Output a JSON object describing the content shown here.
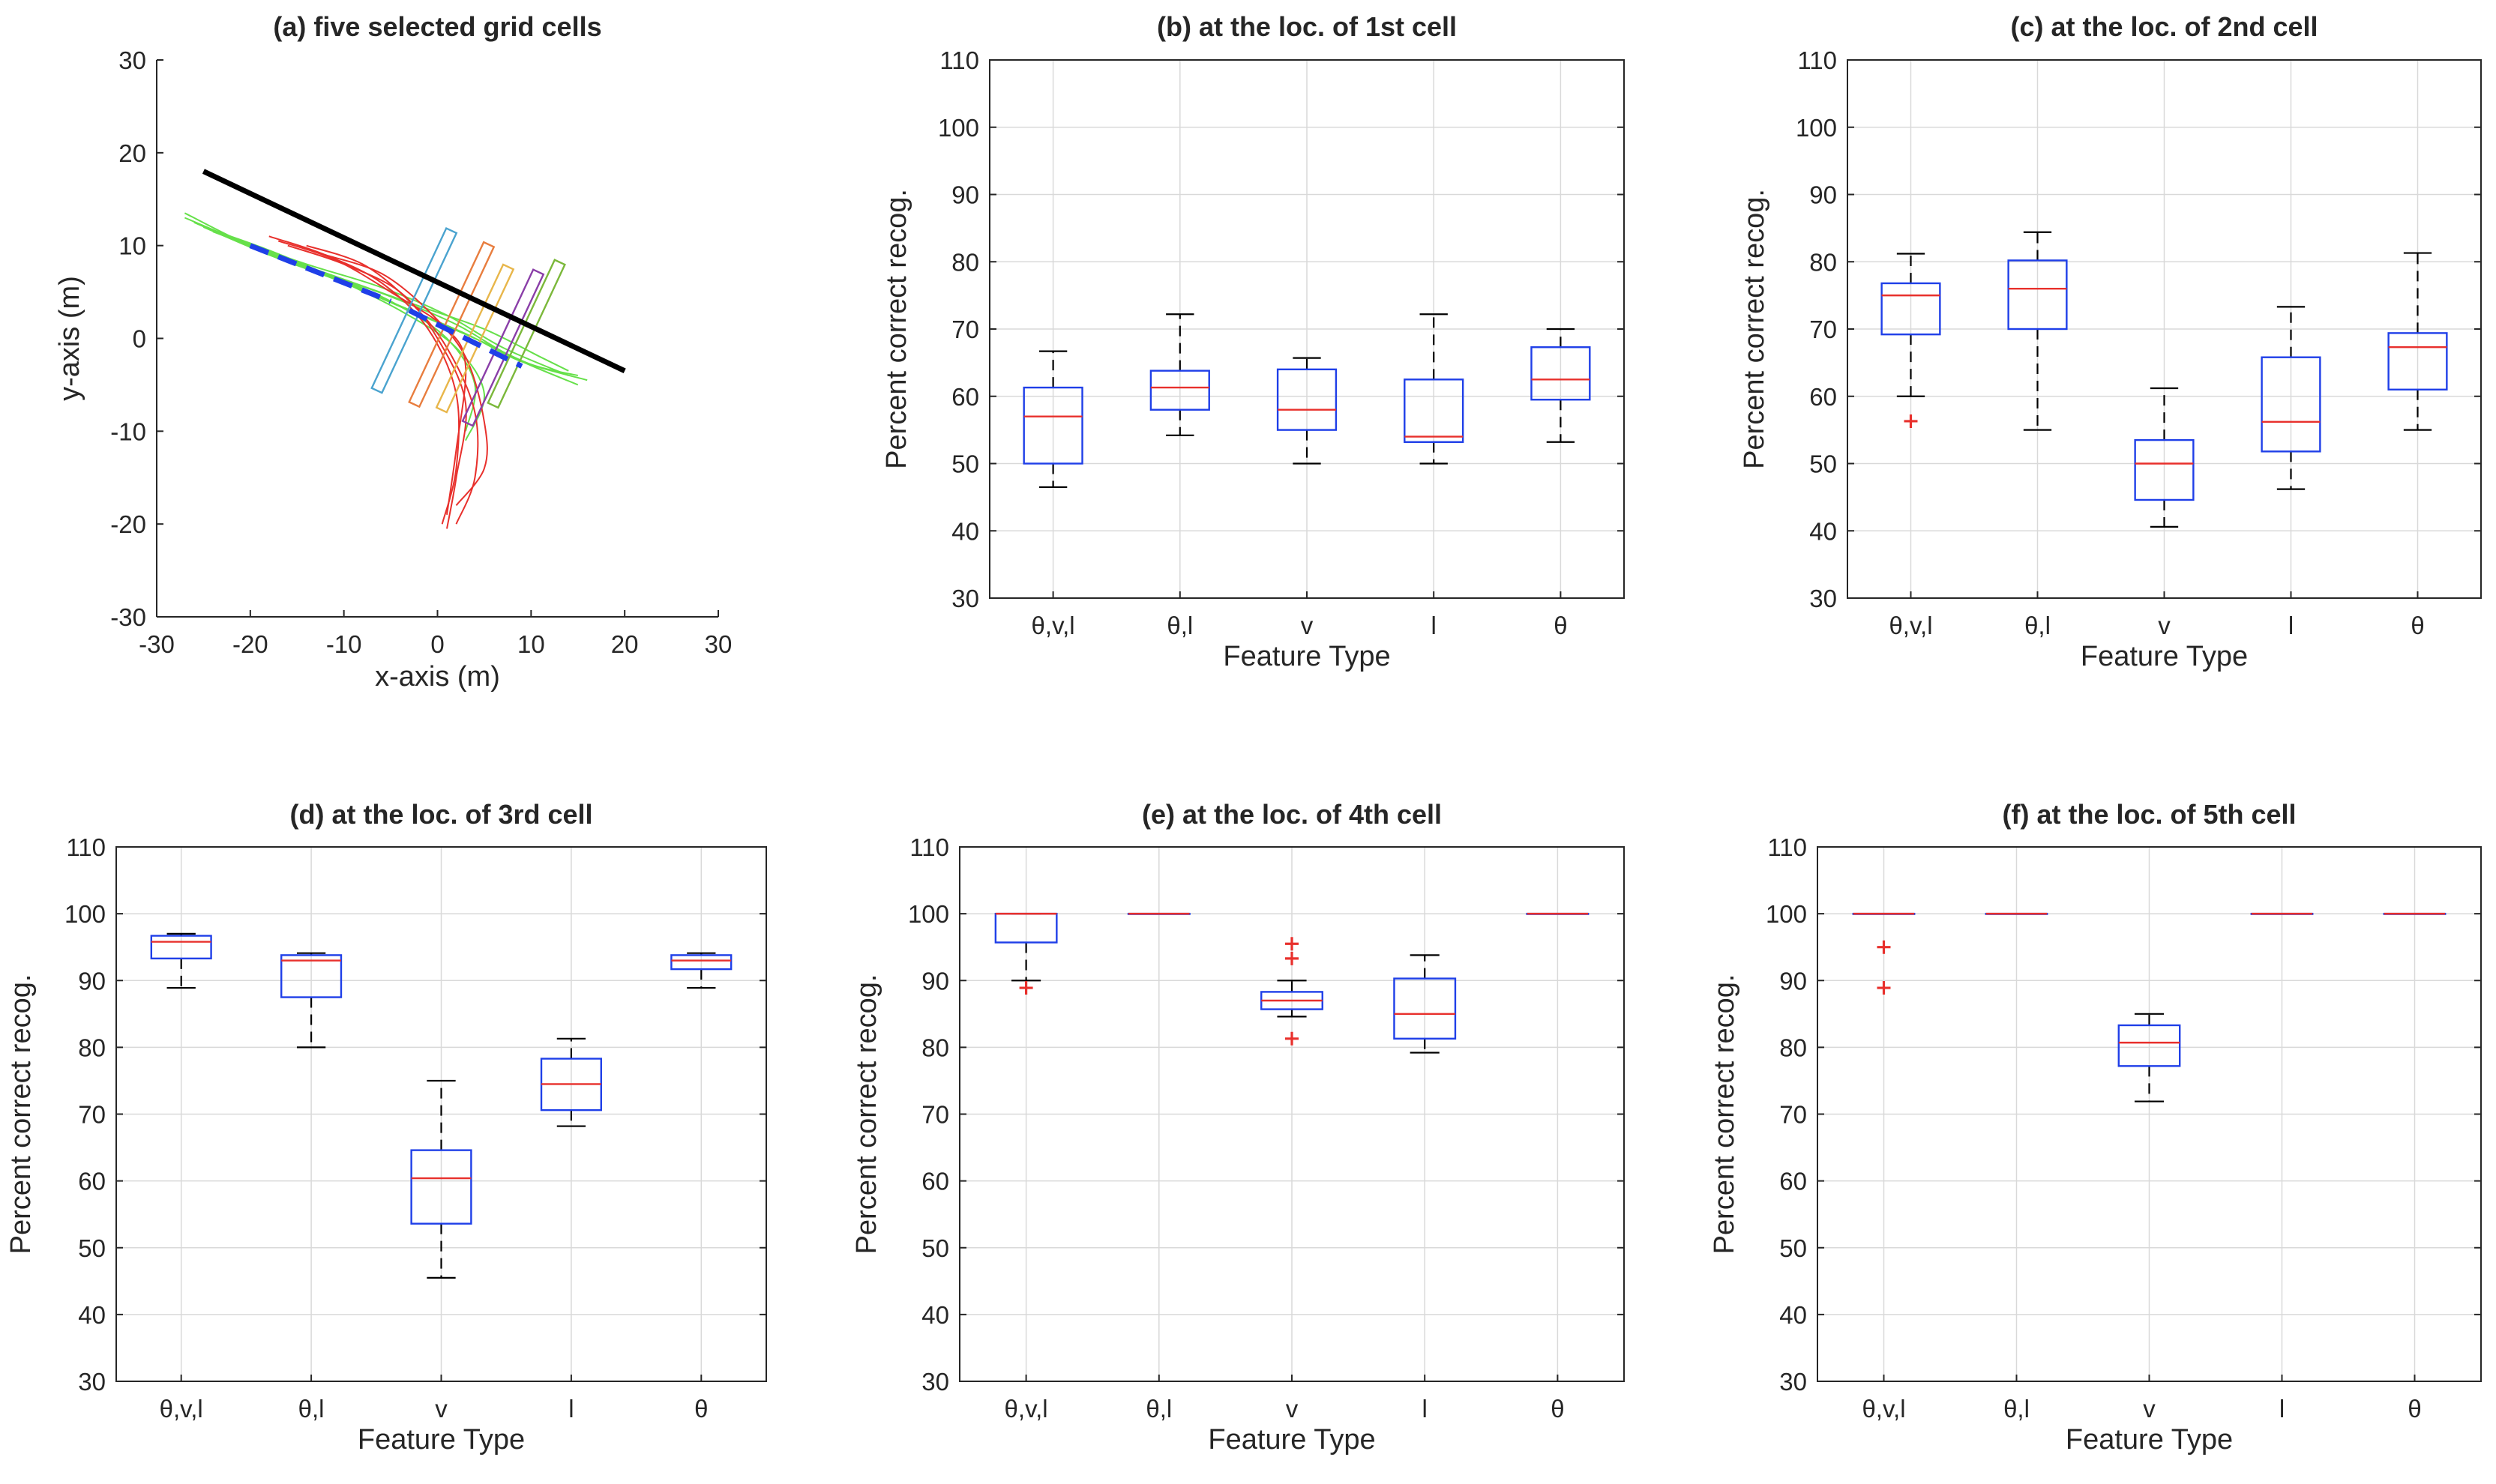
{
  "figure": {
    "background": "#ffffff"
  },
  "colors": {
    "box": "#1f3fe8",
    "median": "#e8302c",
    "whisker": "#000000",
    "outlier": "#e8302c",
    "grid": "#d9d9d9",
    "axis": "#262626",
    "road_line": "#000000",
    "dashed_line": "#1f3fe8",
    "green_tracks": "#66e04a",
    "red_tracks": "#e8302c",
    "cell_colors": [
      "#4aa3cf",
      "#e87d3e",
      "#e8b64a",
      "#8a3ea8",
      "#7bb83a"
    ]
  },
  "chart_data": [
    {
      "id": "a",
      "type": "line",
      "title": "(a) five selected grid cells",
      "xlabel": "x-axis (m)",
      "ylabel": "y-axis (m)",
      "xlim": [
        -30,
        30
      ],
      "ylim": [
        -30,
        30
      ],
      "xticks": [
        -30,
        -20,
        -10,
        0,
        10,
        20,
        30
      ],
      "yticks": [
        -30,
        -20,
        -10,
        0,
        10,
        20,
        30
      ],
      "grid": false,
      "road_line": {
        "x": [
          -25,
          20
        ],
        "y": [
          18,
          -3.5
        ]
      },
      "dashed_line": {
        "x": [
          -20,
          -5
        ],
        "y": [
          10,
          4
        ]
      },
      "dashed_line_2": {
        "x": [
          -3,
          9
        ],
        "y": [
          3,
          -3
        ]
      },
      "cells": [
        {
          "center": [
            -2.5,
            3
          ],
          "width": 1.2,
          "height": 19,
          "angle_deg": 25
        },
        {
          "center": [
            1.5,
            1.5
          ],
          "width": 1.2,
          "height": 19,
          "angle_deg": 25
        },
        {
          "center": [
            4,
            0
          ],
          "width": 1.2,
          "height": 17,
          "angle_deg": 25
        },
        {
          "center": [
            7,
            -1
          ],
          "width": 1.2,
          "height": 18,
          "angle_deg": 25
        },
        {
          "center": [
            9.5,
            0.5
          ],
          "width": 1.2,
          "height": 17,
          "angle_deg": 25
        }
      ],
      "green_tracks": [
        {
          "x": [
            -27,
            -20,
            -12,
            -5,
            2,
            8,
            15
          ],
          "y": [
            13.5,
            10,
            7,
            4.5,
            1.5,
            -2,
            -5
          ]
        },
        {
          "x": [
            -27,
            -21,
            -14,
            -6,
            1,
            7,
            14
          ],
          "y": [
            13,
            10.5,
            8,
            5.5,
            2.5,
            -1,
            -4
          ]
        },
        {
          "x": [
            -26,
            -19,
            -11,
            -4,
            3,
            9,
            16
          ],
          "y": [
            12.5,
            9.5,
            6.5,
            3.5,
            0.5,
            -2.5,
            -4.5
          ]
        },
        {
          "x": [
            -25,
            -18,
            -10,
            -3,
            4,
            10,
            15
          ],
          "y": [
            12,
            9,
            6,
            3,
            0,
            -2.8,
            -4
          ]
        },
        {
          "x": [
            -24,
            -16,
            -9,
            -2,
            5,
            11,
            14
          ],
          "y": [
            11.5,
            8.5,
            6,
            3.5,
            1,
            -2,
            -3.5
          ]
        },
        {
          "x": [
            -26,
            -19,
            -12,
            -5,
            1,
            4,
            3
          ],
          "y": [
            12.5,
            9.5,
            7,
            4,
            0,
            -5,
            -10
          ]
        },
        {
          "x": [
            -25,
            -18,
            -11,
            -4,
            2,
            5,
            3
          ],
          "y": [
            12,
            9.5,
            6.5,
            3,
            -1,
            -6,
            -11
          ]
        }
      ],
      "red_tracks": [
        {
          "x": [
            -18,
            -12,
            -6,
            -1,
            2,
            2,
            0.5
          ],
          "y": [
            11,
            9,
            6,
            1,
            -6,
            -14,
            -20
          ]
        },
        {
          "x": [
            -16,
            -10,
            -4,
            0,
            3,
            2,
            1
          ],
          "y": [
            10,
            8,
            5,
            0,
            -7,
            -15,
            -20.5
          ]
        },
        {
          "x": [
            -14,
            -8,
            -3,
            1,
            4,
            4,
            2
          ],
          "y": [
            10,
            8,
            4,
            -1,
            -8,
            -15,
            -20
          ]
        },
        {
          "x": [
            -12,
            -6,
            -1,
            3,
            5,
            5,
            2
          ],
          "y": [
            9,
            7,
            3,
            -2,
            -9,
            -14,
            -18
          ]
        },
        {
          "x": [
            -17,
            -11,
            -5,
            1,
            3,
            2,
            1
          ],
          "y": [
            10.5,
            8.5,
            5,
            1,
            -3,
            -12,
            -19
          ]
        }
      ]
    },
    {
      "id": "b",
      "type": "box",
      "title": "(b) at the loc. of 1st cell",
      "xlabel": "Feature Type",
      "ylabel": "Percent correct recog.",
      "categories": [
        "θ,v,l",
        "θ,l",
        "v",
        "l",
        "θ"
      ],
      "ylim": [
        30,
        110
      ],
      "yticks": [
        30,
        40,
        50,
        60,
        70,
        80,
        90,
        100,
        110
      ],
      "grid": true,
      "boxes": [
        {
          "q1": 50,
          "median": 57,
          "q3": 61.3,
          "lower": 46.5,
          "upper": 66.7,
          "outliers": []
        },
        {
          "q1": 58,
          "median": 61.3,
          "q3": 63.8,
          "lower": 54.2,
          "upper": 72.2,
          "outliers": []
        },
        {
          "q1": 55,
          "median": 58,
          "q3": 64,
          "lower": 50,
          "upper": 65.7,
          "outliers": []
        },
        {
          "q1": 53.2,
          "median": 54,
          "q3": 62.5,
          "lower": 50,
          "upper": 72.2,
          "outliers": []
        },
        {
          "q1": 59.5,
          "median": 62.5,
          "q3": 67.3,
          "lower": 53.2,
          "upper": 70,
          "outliers": []
        }
      ]
    },
    {
      "id": "c",
      "type": "box",
      "title": "(c) at the loc. of 2nd cell",
      "xlabel": "Feature Type",
      "ylabel": "Percent correct recog.",
      "categories": [
        "θ,v,l",
        "θ,l",
        "v",
        "l",
        "θ"
      ],
      "ylim": [
        30,
        110
      ],
      "yticks": [
        30,
        40,
        50,
        60,
        70,
        80,
        90,
        100,
        110
      ],
      "grid": true,
      "boxes": [
        {
          "q1": 69.2,
          "median": 75,
          "q3": 76.8,
          "lower": 60,
          "upper": 81.2,
          "outliers": [
            56.3
          ]
        },
        {
          "q1": 70,
          "median": 76,
          "q3": 80.2,
          "lower": 55,
          "upper": 84.4,
          "outliers": []
        },
        {
          "q1": 44.6,
          "median": 50,
          "q3": 53.5,
          "lower": 40.6,
          "upper": 61.2,
          "outliers": []
        },
        {
          "q1": 51.8,
          "median": 56.2,
          "q3": 65.8,
          "lower": 46.2,
          "upper": 73.3,
          "outliers": []
        },
        {
          "q1": 61,
          "median": 67.3,
          "q3": 69.4,
          "lower": 55,
          "upper": 81.3,
          "outliers": []
        }
      ]
    },
    {
      "id": "d",
      "type": "box",
      "title": "(d) at the loc. of 3rd cell",
      "xlabel": "Feature Type",
      "ylabel": "Percent correct recog.",
      "categories": [
        "θ,v,l",
        "θ,l",
        "v",
        "l",
        "θ"
      ],
      "ylim": [
        30,
        110
      ],
      "yticks": [
        30,
        40,
        50,
        60,
        70,
        80,
        90,
        100,
        110
      ],
      "grid": true,
      "boxes": [
        {
          "q1": 93.3,
          "median": 95.8,
          "q3": 96.7,
          "lower": 88.9,
          "upper": 97,
          "outliers": []
        },
        {
          "q1": 87.5,
          "median": 93,
          "q3": 93.8,
          "lower": 80,
          "upper": 94.1,
          "outliers": []
        },
        {
          "q1": 53.6,
          "median": 60.4,
          "q3": 64.6,
          "lower": 45.5,
          "upper": 75,
          "outliers": []
        },
        {
          "q1": 70.6,
          "median": 74.5,
          "q3": 78.3,
          "lower": 68.2,
          "upper": 81.3,
          "outliers": []
        },
        {
          "q1": 91.7,
          "median": 93,
          "q3": 93.8,
          "lower": 88.9,
          "upper": 94.1,
          "outliers": []
        }
      ]
    },
    {
      "id": "e",
      "type": "box",
      "title": "(e) at the loc. of 4th cell",
      "xlabel": "Feature Type",
      "ylabel": "Percent correct recog.",
      "categories": [
        "θ,v,l",
        "θ,l",
        "v",
        "l",
        "θ"
      ],
      "ylim": [
        30,
        110
      ],
      "yticks": [
        30,
        40,
        50,
        60,
        70,
        80,
        90,
        100,
        110
      ],
      "grid": true,
      "boxes": [
        {
          "q1": 95.7,
          "median": 100,
          "q3": 100,
          "lower": 90,
          "upper": 100,
          "outliers": [
            88.9
          ]
        },
        {
          "q1": 100,
          "median": 100,
          "q3": 100,
          "lower": 100,
          "upper": 100,
          "outliers": []
        },
        {
          "q1": 85.7,
          "median": 87,
          "q3": 88.3,
          "lower": 84.6,
          "upper": 90,
          "outliers": [
            81.3,
            93.3,
            95.5
          ]
        },
        {
          "q1": 81.3,
          "median": 85,
          "q3": 90.3,
          "lower": 79.2,
          "upper": 93.8,
          "outliers": []
        },
        {
          "q1": 100,
          "median": 100,
          "q3": 100,
          "lower": 100,
          "upper": 100,
          "outliers": []
        }
      ]
    },
    {
      "id": "f",
      "type": "box",
      "title": "(f) at the loc. of 5th cell",
      "xlabel": "Feature Type",
      "ylabel": "Percent correct recog.",
      "categories": [
        "θ,v,l",
        "θ,l",
        "v",
        "l",
        "θ"
      ],
      "ylim": [
        30,
        110
      ],
      "yticks": [
        30,
        40,
        50,
        60,
        70,
        80,
        90,
        100,
        110
      ],
      "grid": true,
      "boxes": [
        {
          "q1": 100,
          "median": 100,
          "q3": 100,
          "lower": 100,
          "upper": 100,
          "outliers": [
            88.9,
            95
          ]
        },
        {
          "q1": 100,
          "median": 100,
          "q3": 100,
          "lower": 100,
          "upper": 100,
          "outliers": []
        },
        {
          "q1": 77.2,
          "median": 80.7,
          "q3": 83.3,
          "lower": 71.9,
          "upper": 85,
          "outliers": []
        },
        {
          "q1": 100,
          "median": 100,
          "q3": 100,
          "lower": 100,
          "upper": 100,
          "outliers": []
        },
        {
          "q1": 100,
          "median": 100,
          "q3": 100,
          "lower": 100,
          "upper": 100,
          "outliers": []
        }
      ]
    }
  ]
}
